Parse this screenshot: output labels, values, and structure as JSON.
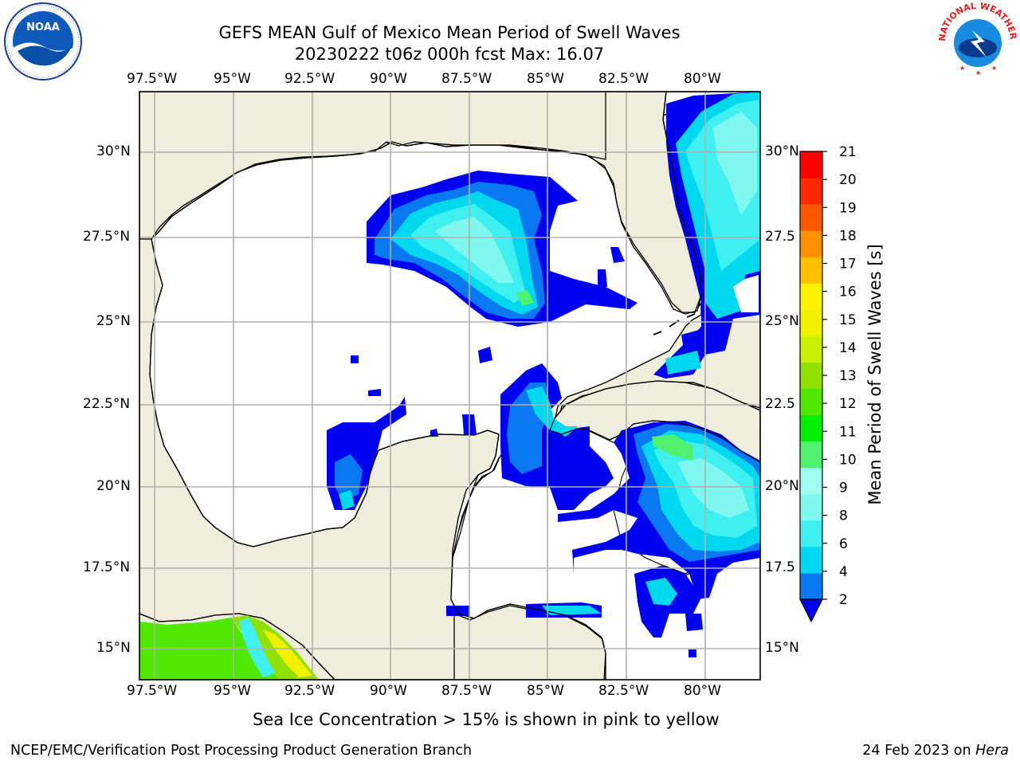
{
  "title": {
    "line1": "GEFS MEAN Gulf of Mexico Mean Period of Swell Waves",
    "line2": "20230222 t06z 000h fcst   Max: 16.07"
  },
  "map": {
    "lon_labels": [
      "97.5°W",
      "95°W",
      "92.5°W",
      "90°W",
      "87.5°W",
      "85°W",
      "82.5°W",
      "80°W"
    ],
    "lat_labels_left": [
      "30°N",
      "27.5°N",
      "25°N",
      "22.5°N",
      "20°N",
      "17.5°N",
      "15°N"
    ],
    "lat_labels_right": [
      "30°N",
      "27.5",
      "25°N",
      "22.5",
      "20°N",
      "17.5",
      "15°N"
    ],
    "land_color": "#efeedc",
    "water_color": "#ffffff",
    "grid_color": "#b0b0b0"
  },
  "colorbar": {
    "label": "Mean Period of Swell Waves [s]",
    "ticks": [
      "2",
      "4",
      "6",
      "8",
      "9",
      "10",
      "11",
      "12",
      "13",
      "14",
      "15",
      "16",
      "17",
      "18",
      "19",
      "20",
      "21"
    ],
    "colors": [
      "#0a78f0",
      "#00d8f0",
      "#40f0f0",
      "#80f8f0",
      "#a0fff0",
      "#50f070",
      "#00f000",
      "#50e800",
      "#90e000",
      "#c8f000",
      "#f0f000",
      "#fff000",
      "#ffc000",
      "#ff9000",
      "#ff5800",
      "#ff2800",
      "#ff0000"
    ],
    "under_color": "#0000f0"
  },
  "subtitle": "Sea Ice Concentration > 15% is shown in pink to yellow",
  "footer": {
    "left": "NCEP/EMC/Verification Post Processing Product Generation Branch",
    "right_date": "24 Feb 2023 on ",
    "right_host": "Hera"
  },
  "logos": {
    "noaa_text": "NOAA",
    "nws_text": "NATIONAL WEATHER SERVICE"
  }
}
